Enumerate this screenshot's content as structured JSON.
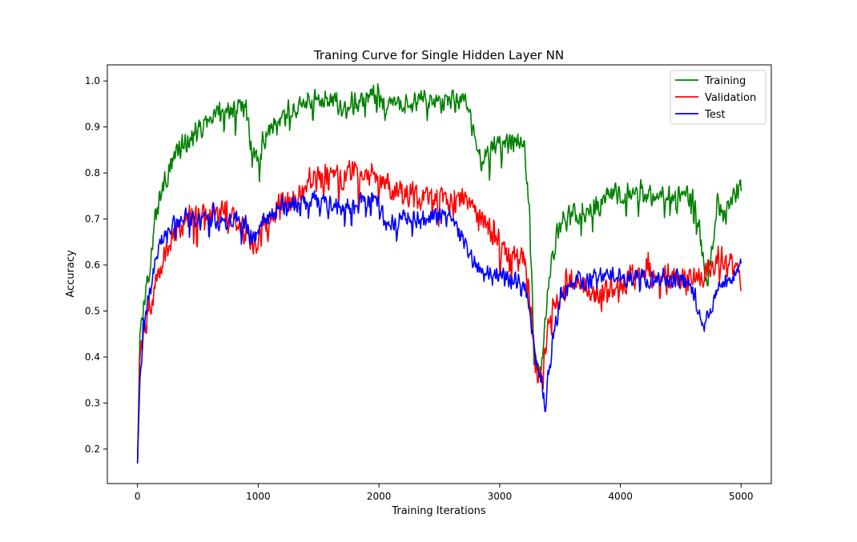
{
  "chart_data": {
    "type": "line",
    "title": "Traning Curve for Single Hidden Layer NN",
    "xlabel": "Training Iterations",
    "ylabel": "Accuracy",
    "xlim": [
      -250,
      5250
    ],
    "ylim": [
      0.125,
      1.035
    ],
    "xticks": [
      0,
      1000,
      2000,
      3000,
      4000,
      5000
    ],
    "yticks": [
      0.2,
      0.3,
      0.4,
      0.5,
      0.6,
      0.7,
      0.8,
      0.9,
      1.0
    ],
    "xtick_labels": [
      "0",
      "1000",
      "2000",
      "3000",
      "4000",
      "5000"
    ],
    "ytick_labels": [
      "0.2",
      "0.3",
      "0.4",
      "0.5",
      "0.6",
      "0.7",
      "0.8",
      "0.9",
      "1.0"
    ],
    "grid": false,
    "legend": "top-right",
    "series": [
      {
        "name": "Training",
        "color": "#008000",
        "noise": 0.03,
        "x": [
          0,
          20,
          50,
          100,
          150,
          200,
          300,
          400,
          500,
          600,
          700,
          800,
          900,
          950,
          1000,
          1100,
          1200,
          1300,
          1400,
          1500,
          1600,
          1700,
          1800,
          1900,
          2000,
          2050,
          2100,
          2200,
          2300,
          2400,
          2500,
          2600,
          2700,
          2750,
          2800,
          2850,
          2900,
          3000,
          3100,
          3200,
          3250,
          3280,
          3300,
          3350,
          3400,
          3450,
          3500,
          3550,
          3600,
          3700,
          3800,
          3900,
          4000,
          4100,
          4200,
          4300,
          4400,
          4500,
          4600,
          4650,
          4700,
          4750,
          4800,
          4850,
          4900,
          4950,
          5000
        ],
        "y": [
          0.17,
          0.45,
          0.52,
          0.6,
          0.7,
          0.76,
          0.83,
          0.87,
          0.89,
          0.92,
          0.93,
          0.94,
          0.95,
          0.84,
          0.83,
          0.9,
          0.92,
          0.94,
          0.95,
          0.96,
          0.96,
          0.94,
          0.96,
          0.96,
          0.965,
          0.94,
          0.945,
          0.95,
          0.955,
          0.955,
          0.955,
          0.96,
          0.96,
          0.92,
          0.87,
          0.83,
          0.85,
          0.86,
          0.87,
          0.87,
          0.7,
          0.45,
          0.38,
          0.38,
          0.55,
          0.63,
          0.7,
          0.7,
          0.71,
          0.72,
          0.73,
          0.75,
          0.75,
          0.75,
          0.75,
          0.75,
          0.75,
          0.75,
          0.75,
          0.7,
          0.56,
          0.6,
          0.74,
          0.7,
          0.73,
          0.76,
          0.76
        ]
      },
      {
        "name": "Validation",
        "color": "#ff0000",
        "noise": 0.035,
        "x": [
          0,
          20,
          50,
          100,
          150,
          200,
          300,
          400,
          500,
          600,
          700,
          800,
          900,
          950,
          1000,
          1100,
          1200,
          1300,
          1400,
          1500,
          1600,
          1700,
          1800,
          1900,
          2000,
          2100,
          2200,
          2300,
          2400,
          2500,
          2600,
          2700,
          2800,
          2900,
          3000,
          3100,
          3200,
          3250,
          3300,
          3350,
          3400,
          3450,
          3500,
          3550,
          3600,
          3700,
          3800,
          3900,
          4000,
          4100,
          4200,
          4300,
          4400,
          4500,
          4600,
          4700,
          4800,
          4850,
          4900,
          5000
        ],
        "y": [
          0.17,
          0.4,
          0.46,
          0.5,
          0.56,
          0.6,
          0.66,
          0.7,
          0.7,
          0.72,
          0.71,
          0.7,
          0.68,
          0.64,
          0.66,
          0.7,
          0.73,
          0.74,
          0.78,
          0.8,
          0.8,
          0.79,
          0.8,
          0.79,
          0.8,
          0.77,
          0.76,
          0.75,
          0.75,
          0.75,
          0.75,
          0.75,
          0.72,
          0.68,
          0.64,
          0.62,
          0.62,
          0.5,
          0.38,
          0.36,
          0.45,
          0.5,
          0.52,
          0.55,
          0.56,
          0.55,
          0.53,
          0.54,
          0.55,
          0.58,
          0.58,
          0.58,
          0.57,
          0.56,
          0.56,
          0.58,
          0.6,
          0.62,
          0.6,
          0.57
        ]
      },
      {
        "name": "Test",
        "color": "#0000ff",
        "noise": 0.025,
        "x": [
          0,
          20,
          50,
          100,
          150,
          200,
          300,
          400,
          500,
          600,
          700,
          800,
          900,
          950,
          1000,
          1100,
          1200,
          1300,
          1400,
          1500,
          1600,
          1700,
          1800,
          1900,
          2000,
          2050,
          2100,
          2200,
          2300,
          2400,
          2500,
          2600,
          2700,
          2800,
          2900,
          3000,
          3100,
          3200,
          3250,
          3300,
          3350,
          3380,
          3400,
          3450,
          3500,
          3550,
          3600,
          3700,
          3800,
          3900,
          4000,
          4100,
          4200,
          4300,
          4400,
          4500,
          4600,
          4650,
          4700,
          4800,
          4900,
          5000
        ],
        "y": [
          0.17,
          0.35,
          0.45,
          0.55,
          0.6,
          0.65,
          0.69,
          0.7,
          0.7,
          0.7,
          0.7,
          0.7,
          0.69,
          0.65,
          0.68,
          0.71,
          0.73,
          0.73,
          0.74,
          0.74,
          0.73,
          0.72,
          0.73,
          0.74,
          0.75,
          0.7,
          0.69,
          0.7,
          0.7,
          0.705,
          0.705,
          0.705,
          0.65,
          0.6,
          0.59,
          0.58,
          0.57,
          0.56,
          0.5,
          0.4,
          0.34,
          0.28,
          0.35,
          0.46,
          0.52,
          0.55,
          0.56,
          0.57,
          0.57,
          0.58,
          0.58,
          0.57,
          0.57,
          0.57,
          0.57,
          0.57,
          0.55,
          0.5,
          0.48,
          0.54,
          0.57,
          0.59
        ]
      }
    ]
  }
}
